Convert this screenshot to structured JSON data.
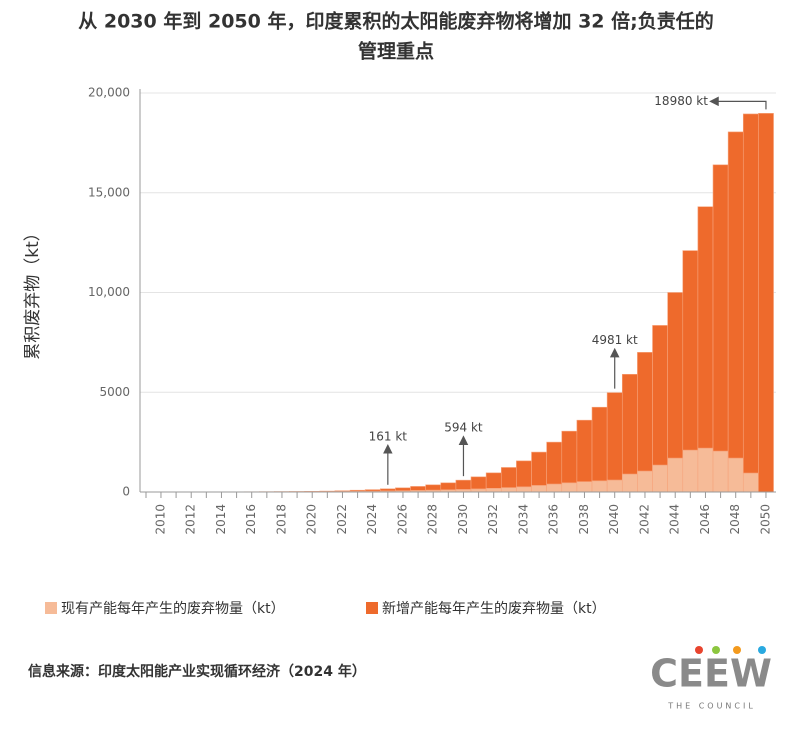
{
  "chart_data": {
    "type": "stacked_bar",
    "title": [
      "从 2030 年到 2050 年，印度累积的太阳能废弃物将增加 32 倍;负责任的",
      "管理重点"
    ],
    "y_label": "累积废弃物（kt）",
    "categories": [
      2010,
      null,
      2012,
      null,
      2014,
      null,
      2016,
      null,
      2018,
      null,
      2020,
      null,
      2022,
      null,
      2024,
      null,
      2026,
      null,
      2028,
      null,
      2030,
      null,
      2032,
      null,
      2034,
      null,
      2036,
      null,
      2038,
      null,
      2040,
      null,
      2042,
      null,
      2044,
      null,
      2046,
      null,
      2048,
      null,
      2050
    ],
    "series": [
      {
        "name": "现有产能每年产生的废弃物量（kt）",
        "color": "#f6bb98",
        "values": [
          2,
          3,
          4,
          5,
          6,
          8,
          10,
          12,
          15,
          18,
          22,
          27,
          33,
          40,
          48,
          57,
          68,
          80,
          95,
          112,
          130,
          155,
          185,
          220,
          260,
          330,
          400,
          460,
          520,
          560,
          600,
          900,
          1050,
          1350,
          1700,
          2100,
          2200,
          2050,
          1700,
          950,
          0
        ]
      },
      {
        "name": "新增产能每年产生的废弃物量（kt）",
        "color": "#ee6a2c",
        "values": [
          0,
          0,
          0,
          0,
          1,
          1,
          2,
          3,
          4,
          6,
          8,
          18,
          32,
          50,
          72,
          104,
          142,
          200,
          265,
          348,
          464,
          605,
          775,
          1010,
          1300,
          1670,
          2100,
          2590,
          3080,
          3690,
          4381,
          5000,
          5950,
          7000,
          8300,
          10000,
          12100,
          14350,
          16350,
          18000,
          18980
        ]
      }
    ],
    "ylim": [
      0,
      20000
    ],
    "yticks": [
      0,
      5000,
      {
        "value": 10000,
        "label": "10,000"
      },
      {
        "value": 15000,
        "label": "15,000"
      },
      {
        "value": 20000,
        "label": "20,000"
      }
    ],
    "grid": true,
    "annotations": [
      {
        "text": "161 kt",
        "x": 2025,
        "arrow": "up"
      },
      {
        "text": "594 kt",
        "x": 2030,
        "arrow": "up"
      },
      {
        "text": "4981 kt",
        "x": 2040,
        "arrow": "up"
      },
      {
        "text": "18980 kt",
        "x": 2050,
        "arrow": "left"
      }
    ],
    "source": "信息来源：印度太阳能产业实现循环经济（2024 年）",
    "logo": {
      "name": "CEEW",
      "tagline": "THE COUNCIL"
    }
  }
}
